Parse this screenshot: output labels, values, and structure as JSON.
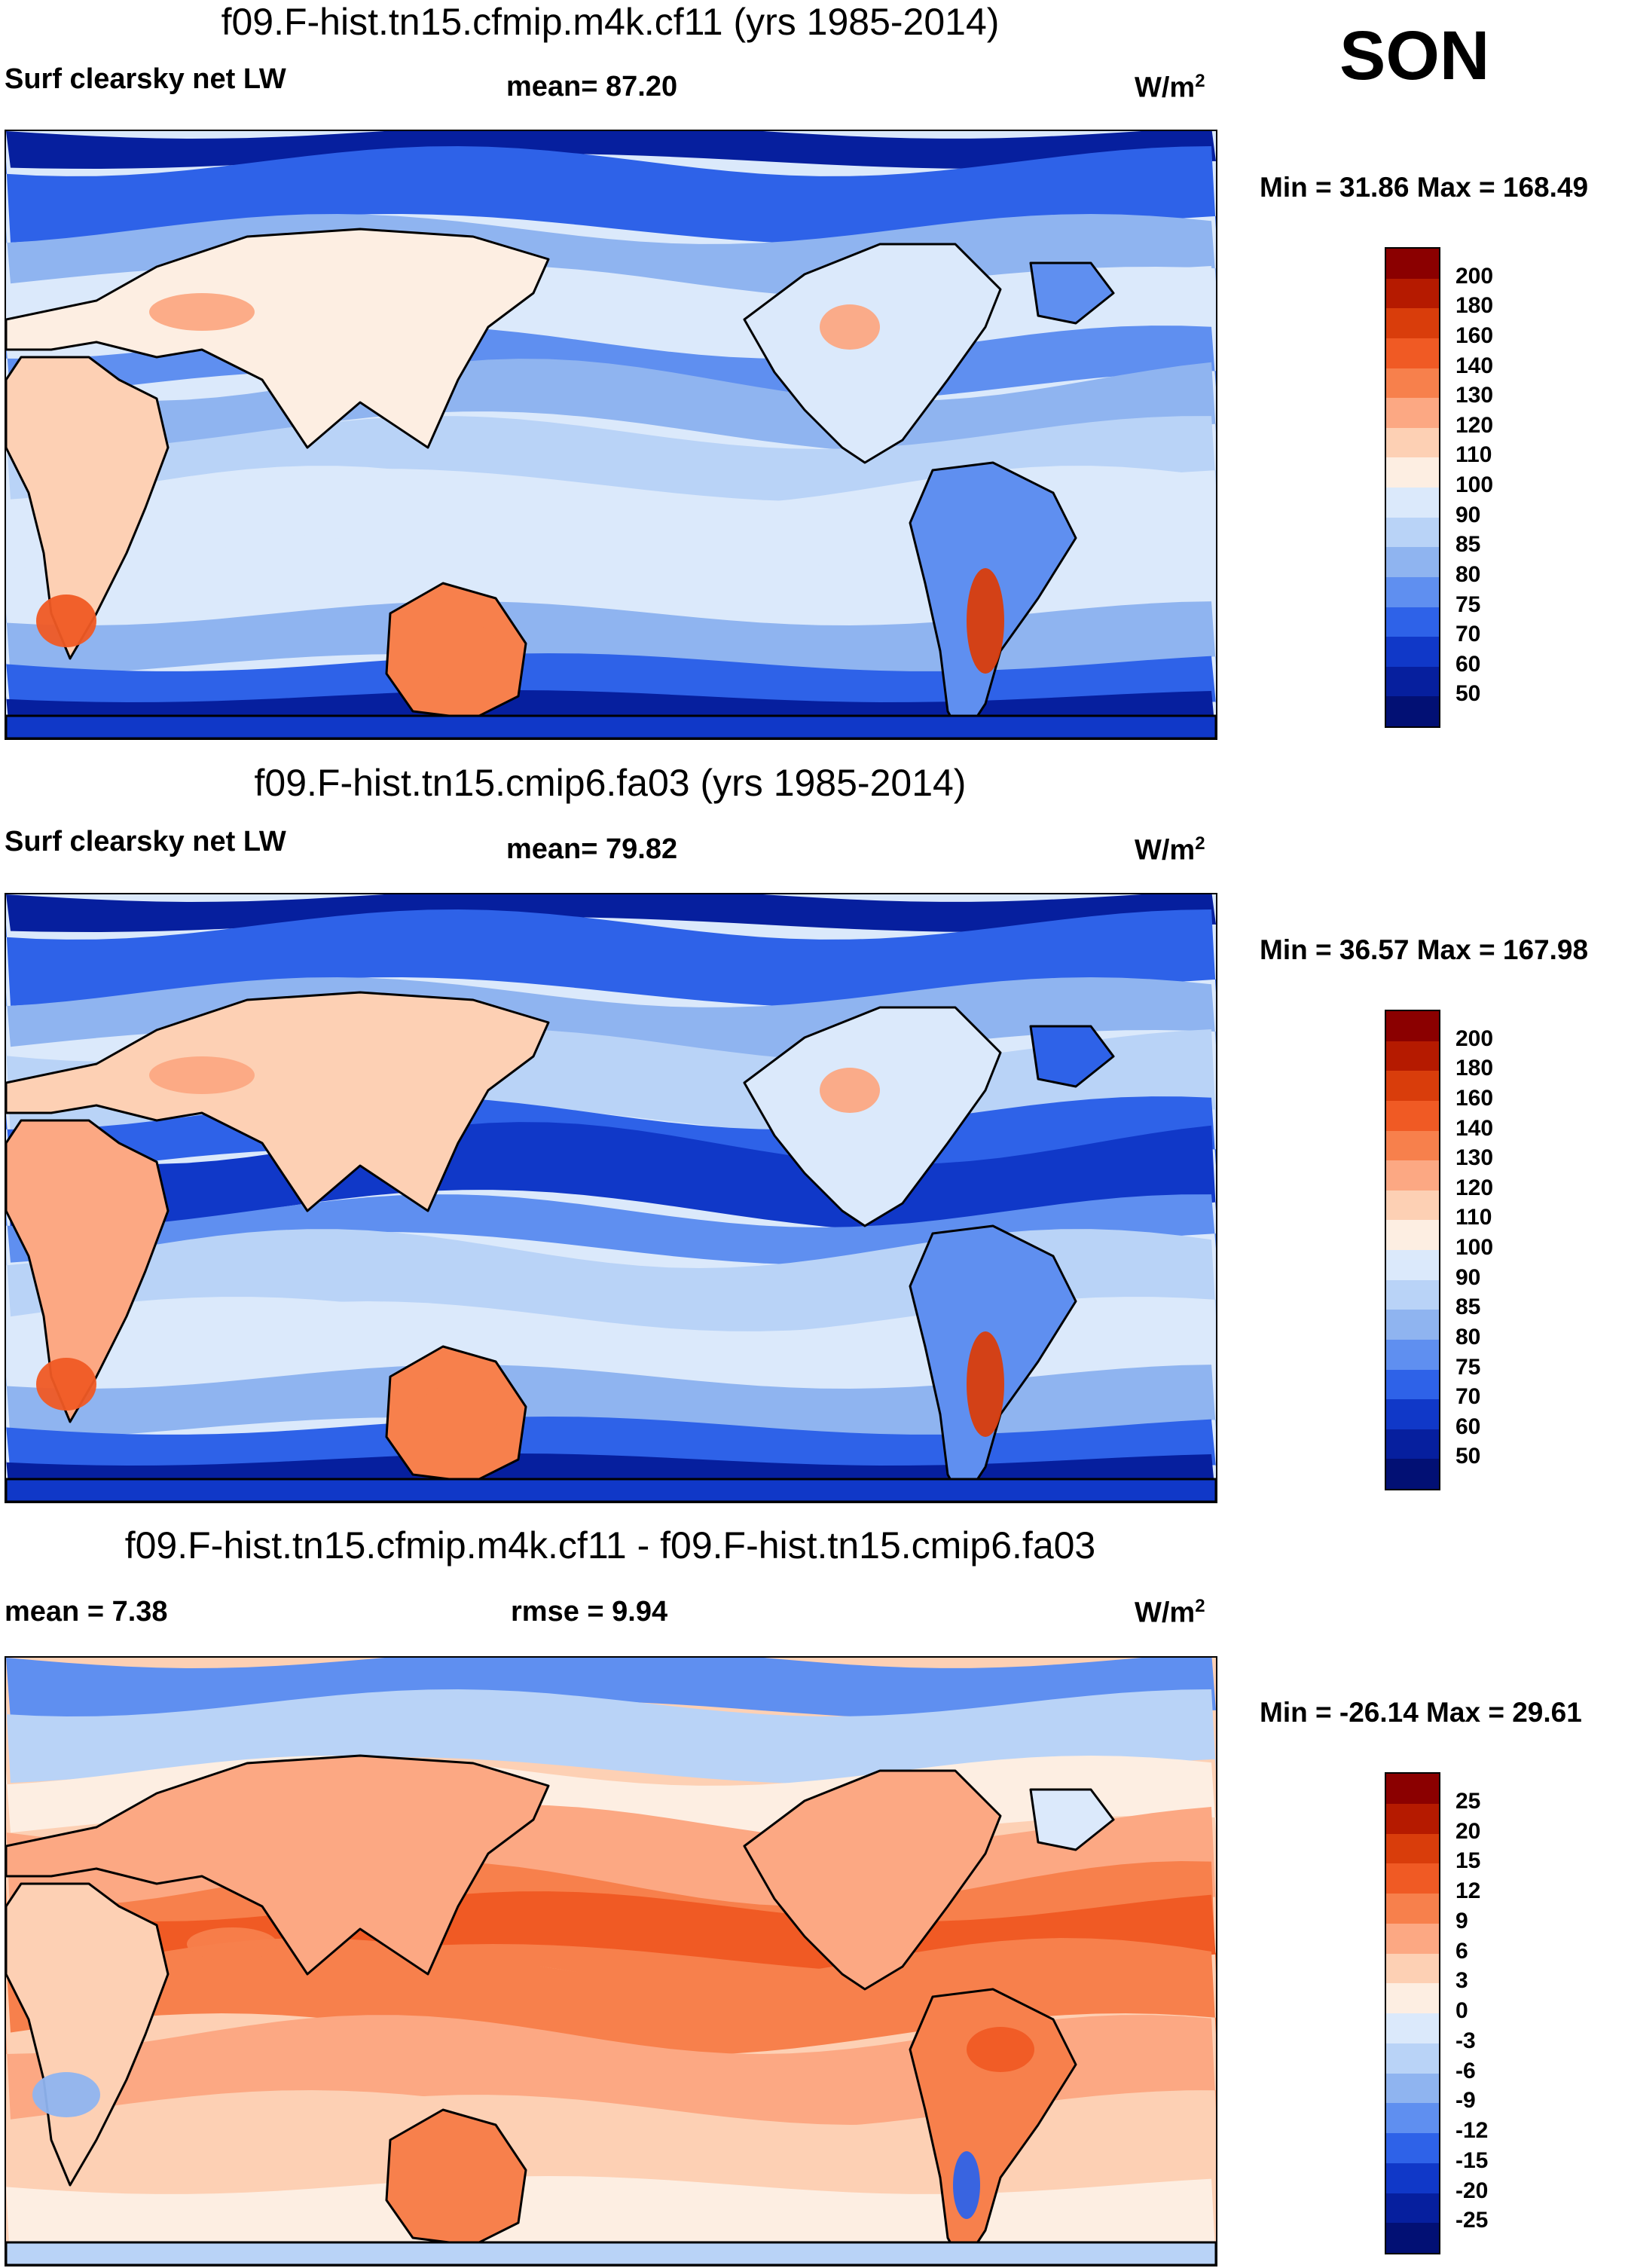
{
  "season": "SON",
  "panels": [
    {
      "title": "f09.F-hist.tn15.cfmip.m4k.cf11 (yrs 1985-2014)",
      "left_label": "Surf clearsky net LW",
      "center_label": "mean=  87.20",
      "units": "W/m",
      "units_sup": "2",
      "minmax": "Min =  31.86 Max = 168.49",
      "scheme": "abs",
      "colorbar": {
        "labels": [
          "200",
          "180",
          "160",
          "140",
          "130",
          "120",
          "110",
          "100",
          "90",
          "85",
          "80",
          "75",
          "70",
          "60",
          "50"
        ],
        "colors": [
          "#8b0000",
          "#b51a00",
          "#d93d0b",
          "#f05a24",
          "#f7804c",
          "#fca883",
          "#fdd0b4",
          "#fdeee2",
          "#dbe9fb",
          "#b9d3f7",
          "#8fb4f0",
          "#5f8ff0",
          "#2e62e8",
          "#1038c8",
          "#061f9e",
          "#021074"
        ]
      }
    },
    {
      "title": "f09.F-hist.tn15.cmip6.fa03 (yrs 1985-2014)",
      "left_label": "Surf clearsky net LW",
      "center_label": "mean=  79.82",
      "units": "W/m",
      "units_sup": "2",
      "minmax": "Min =  36.57 Max = 167.98",
      "scheme": "abs2",
      "colorbar": {
        "labels": [
          "200",
          "180",
          "160",
          "140",
          "130",
          "120",
          "110",
          "100",
          "90",
          "85",
          "80",
          "75",
          "70",
          "60",
          "50"
        ],
        "colors": [
          "#8b0000",
          "#b51a00",
          "#d93d0b",
          "#f05a24",
          "#f7804c",
          "#fca883",
          "#fdd0b4",
          "#fdeee2",
          "#dbe9fb",
          "#b9d3f7",
          "#8fb4f0",
          "#5f8ff0",
          "#2e62e8",
          "#1038c8",
          "#061f9e",
          "#021074"
        ]
      }
    },
    {
      "title": "f09.F-hist.tn15.cfmip.m4k.cf11 - f09.F-hist.tn15.cmip6.fa03",
      "left_label": "mean =    7.38",
      "center_label": "rmse =    9.94",
      "units": "W/m",
      "units_sup": "2",
      "minmax": "Min = -26.14 Max =  29.61",
      "scheme": "diff",
      "colorbar": {
        "labels": [
          "25",
          "20",
          "15",
          "12",
          "9",
          "6",
          "3",
          "0",
          "-3",
          "-6",
          "-9",
          "-12",
          "-15",
          "-20",
          "-25"
        ],
        "colors": [
          "#8b0000",
          "#b51a00",
          "#d93d0b",
          "#f05a24",
          "#f7804c",
          "#fca883",
          "#fdd0b4",
          "#fdeee2",
          "#dbe9fb",
          "#b9d3f7",
          "#8fb4f0",
          "#5f8ff0",
          "#2e62e8",
          "#1038c8",
          "#061f9e",
          "#021074"
        ]
      }
    }
  ]
}
